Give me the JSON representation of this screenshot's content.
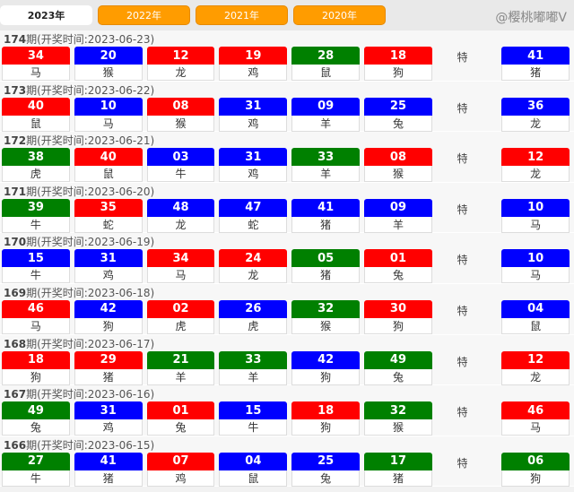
{
  "tabs": [
    {
      "label": "2023年",
      "active": true
    },
    {
      "label": "2022年"
    },
    {
      "label": "2021年"
    },
    {
      "label": "2020年"
    }
  ],
  "colors": {
    "red": "#ff0000",
    "blue": "#0000ff",
    "green": "#008000"
  },
  "special_label": "特",
  "time_prefix": "期(开奖时间:",
  "time_suffix": ")",
  "draws": [
    {
      "issue": "174",
      "date": "2023-06-23",
      "balls": [
        [
          "34",
          "马",
          "red"
        ],
        [
          "20",
          "猴",
          "blue"
        ],
        [
          "12",
          "龙",
          "red"
        ],
        [
          "19",
          "鸡",
          "red"
        ],
        [
          "28",
          "鼠",
          "green"
        ],
        [
          "18",
          "狗",
          "red"
        ]
      ],
      "special": [
        "41",
        "猪",
        "blue"
      ]
    },
    {
      "issue": "173",
      "date": "2023-06-22",
      "balls": [
        [
          "40",
          "鼠",
          "red"
        ],
        [
          "10",
          "马",
          "blue"
        ],
        [
          "08",
          "猴",
          "red"
        ],
        [
          "31",
          "鸡",
          "blue"
        ],
        [
          "09",
          "羊",
          "blue"
        ],
        [
          "25",
          "兔",
          "blue"
        ]
      ],
      "special": [
        "36",
        "龙",
        "blue"
      ]
    },
    {
      "issue": "172",
      "date": "2023-06-21",
      "balls": [
        [
          "38",
          "虎",
          "green"
        ],
        [
          "40",
          "鼠",
          "red"
        ],
        [
          "03",
          "牛",
          "blue"
        ],
        [
          "31",
          "鸡",
          "blue"
        ],
        [
          "33",
          "羊",
          "green"
        ],
        [
          "08",
          "猴",
          "red"
        ]
      ],
      "special": [
        "12",
        "龙",
        "red"
      ]
    },
    {
      "issue": "171",
      "date": "2023-06-20",
      "balls": [
        [
          "39",
          "牛",
          "green"
        ],
        [
          "35",
          "蛇",
          "red"
        ],
        [
          "48",
          "龙",
          "blue"
        ],
        [
          "47",
          "蛇",
          "blue"
        ],
        [
          "41",
          "猪",
          "blue"
        ],
        [
          "09",
          "羊",
          "blue"
        ]
      ],
      "special": [
        "10",
        "马",
        "blue"
      ]
    },
    {
      "issue": "170",
      "date": "2023-06-19",
      "balls": [
        [
          "15",
          "牛",
          "blue"
        ],
        [
          "31",
          "鸡",
          "blue"
        ],
        [
          "34",
          "马",
          "red"
        ],
        [
          "24",
          "龙",
          "red"
        ],
        [
          "05",
          "猪",
          "green"
        ],
        [
          "01",
          "兔",
          "red"
        ]
      ],
      "special": [
        "10",
        "马",
        "blue"
      ]
    },
    {
      "issue": "169",
      "date": "2023-06-18",
      "balls": [
        [
          "46",
          "马",
          "red"
        ],
        [
          "42",
          "狗",
          "blue"
        ],
        [
          "02",
          "虎",
          "red"
        ],
        [
          "26",
          "虎",
          "blue"
        ],
        [
          "32",
          "猴",
          "green"
        ],
        [
          "30",
          "狗",
          "red"
        ]
      ],
      "special": [
        "04",
        "鼠",
        "blue"
      ]
    },
    {
      "issue": "168",
      "date": "2023-06-17",
      "balls": [
        [
          "18",
          "狗",
          "red"
        ],
        [
          "29",
          "猪",
          "red"
        ],
        [
          "21",
          "羊",
          "green"
        ],
        [
          "33",
          "羊",
          "green"
        ],
        [
          "42",
          "狗",
          "blue"
        ],
        [
          "49",
          "兔",
          "green"
        ]
      ],
      "special": [
        "12",
        "龙",
        "red"
      ]
    },
    {
      "issue": "167",
      "date": "2023-06-16",
      "balls": [
        [
          "49",
          "兔",
          "green"
        ],
        [
          "31",
          "鸡",
          "blue"
        ],
        [
          "01",
          "兔",
          "red"
        ],
        [
          "15",
          "牛",
          "blue"
        ],
        [
          "18",
          "狗",
          "red"
        ],
        [
          "32",
          "猴",
          "green"
        ]
      ],
      "special": [
        "46",
        "马",
        "red"
      ]
    },
    {
      "issue": "166",
      "date": "2023-06-15",
      "balls": [
        [
          "27",
          "牛",
          "green"
        ],
        [
          "41",
          "猪",
          "blue"
        ],
        [
          "07",
          "鸡",
          "red"
        ],
        [
          "04",
          "鼠",
          "blue"
        ],
        [
          "25",
          "兔",
          "blue"
        ],
        [
          "17",
          "猪",
          "green"
        ]
      ],
      "special": [
        "06",
        "狗",
        "green"
      ]
    }
  ],
  "watermark": "@樱桃嘟嘟V"
}
